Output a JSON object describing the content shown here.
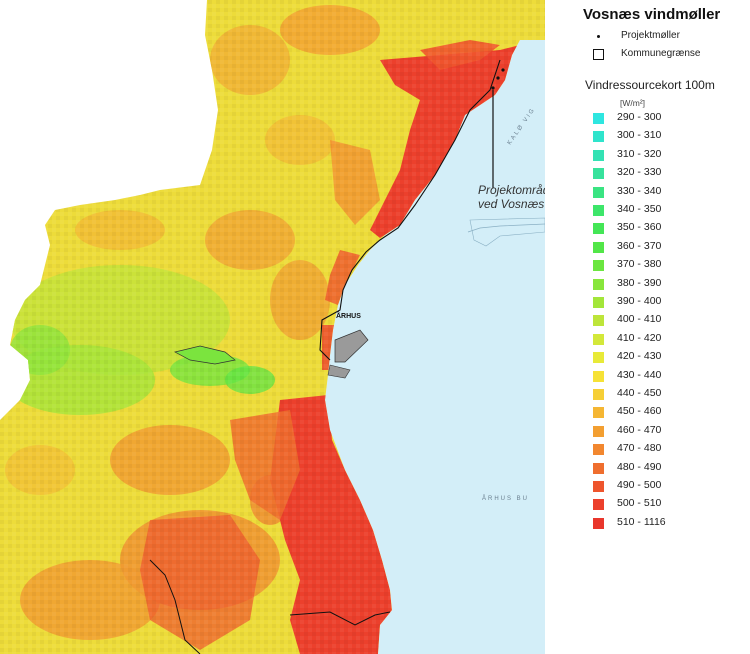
{
  "map": {
    "project_label_line1": "Projektområdet",
    "project_label_line2": "ved Vosnæs",
    "city_label": "ÅRHUS",
    "water_label_1": "ÅRHUS BU",
    "water_label_2": "KALØ VIG",
    "colors": {
      "sea": "#d3eef8",
      "land_edge": "#9fb0a0"
    }
  },
  "legend": {
    "title": "Vosnæs vindmøller",
    "symbols": [
      {
        "label": "Projektmøller",
        "icon": "dot-icon"
      },
      {
        "label": "Kommunegrænse",
        "icon": "square-outline-icon"
      }
    ],
    "wind_resource": {
      "title": "Vindressourcekort 100m",
      "unit": "[W/m²]",
      "classes": [
        {
          "label": "290 - 300",
          "color": "#2ee6e0"
        },
        {
          "label": "300 - 310",
          "color": "#2fe4cc"
        },
        {
          "label": "310 - 320",
          "color": "#33e2b4"
        },
        {
          "label": "320 - 330",
          "color": "#37e29c"
        },
        {
          "label": "330 - 340",
          "color": "#3ae482"
        },
        {
          "label": "340 - 350",
          "color": "#3de66a"
        },
        {
          "label": "350 - 360",
          "color": "#44e656"
        },
        {
          "label": "360 - 370",
          "color": "#52e648"
        },
        {
          "label": "370 - 380",
          "color": "#6be640"
        },
        {
          "label": "380 - 390",
          "color": "#88e63c"
        },
        {
          "label": "390 - 400",
          "color": "#a3e63a"
        },
        {
          "label": "400 - 410",
          "color": "#bde53a"
        },
        {
          "label": "410 - 420",
          "color": "#d3e83a"
        },
        {
          "label": "420 - 430",
          "color": "#e8ea38"
        },
        {
          "label": "430 - 440",
          "color": "#f6e236"
        },
        {
          "label": "440 - 450",
          "color": "#f6cf36"
        },
        {
          "label": "450 - 460",
          "color": "#f5b633"
        },
        {
          "label": "460 - 470",
          "color": "#f39f31"
        },
        {
          "label": "470 - 480",
          "color": "#f2872f"
        },
        {
          "label": "480 - 490",
          "color": "#ef6e2e"
        },
        {
          "label": "490 - 500",
          "color": "#ee552d"
        },
        {
          "label": "500 - 510",
          "color": "#ec402c"
        },
        {
          "label": "510 - 1116",
          "color": "#e9362c"
        }
      ]
    }
  }
}
